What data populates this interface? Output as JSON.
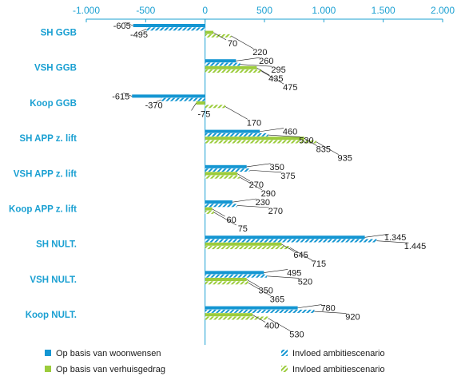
{
  "chart_data": {
    "type": "bar",
    "orientation": "horizontal",
    "categories": [
      "SH GGB",
      "VSH GGB",
      "Koop GGB",
      "SH APP z. lift",
      "VSH APP z. lift",
      "Koop APP z. lift",
      "SH NULT.",
      "VSH NULT.",
      "Koop NULT."
    ],
    "series": [
      {
        "name": "Op basis van woonwensen",
        "color": "#1496d2",
        "pattern": "solid",
        "values": [
          -605,
          260,
          -615,
          460,
          350,
          230,
          1345,
          495,
          780
        ]
      },
      {
        "name": "Invloed ambitiescenario",
        "color": "#1496d2",
        "pattern": "hatched",
        "values": [
          -495,
          295,
          -370,
          530,
          375,
          270,
          1445,
          520,
          920
        ]
      },
      {
        "name": "Op basis van verhuisgedrag",
        "color": "#9ccc3c",
        "pattern": "solid",
        "values": [
          70,
          435,
          -75,
          835,
          270,
          60,
          645,
          350,
          400
        ]
      },
      {
        "name": "Invloed ambitiescenario",
        "color": "#9ccc3c",
        "pattern": "hatched",
        "values": [
          220,
          475,
          170,
          935,
          290,
          75,
          715,
          365,
          530
        ]
      }
    ],
    "labels": [
      [
        "-605",
        "260",
        "-615",
        "460",
        "350",
        "230",
        "1.345",
        "495",
        "780"
      ],
      [
        "-495",
        "295",
        "-370",
        "530",
        "375",
        "270",
        "1.445",
        "520",
        "920"
      ],
      [
        "70",
        "435",
        "-75",
        "835",
        "270",
        "60",
        "645",
        "350",
        "400"
      ],
      [
        "220",
        "475",
        "170",
        "935",
        "290",
        "75",
        "715",
        "365",
        "530"
      ]
    ],
    "xlim": [
      -1000,
      2000
    ],
    "x_ticks": [
      -1000,
      -500,
      0,
      500,
      1000,
      1500,
      2000
    ],
    "x_tick_labels": [
      "-1.000",
      "-500",
      "0",
      "500",
      "1.000",
      "1.500",
      "2.000"
    ],
    "x_axis_position": "top",
    "grid": false,
    "legend_position": "bottom",
    "title": "",
    "xlabel": "",
    "ylabel": ""
  },
  "legend": [
    {
      "label": "Op basis van woonwensen",
      "color": "#1496d2",
      "pattern": "solid"
    },
    {
      "label": "Invloed ambitiescenario",
      "color": "#1496d2",
      "pattern": "hatched"
    },
    {
      "label": "Op basis van verhuisgedrag",
      "color": "#9ccc3c",
      "pattern": "solid"
    },
    {
      "label": "Invloed ambitiescenario",
      "color": "#9ccc3c",
      "pattern": "hatched"
    }
  ]
}
